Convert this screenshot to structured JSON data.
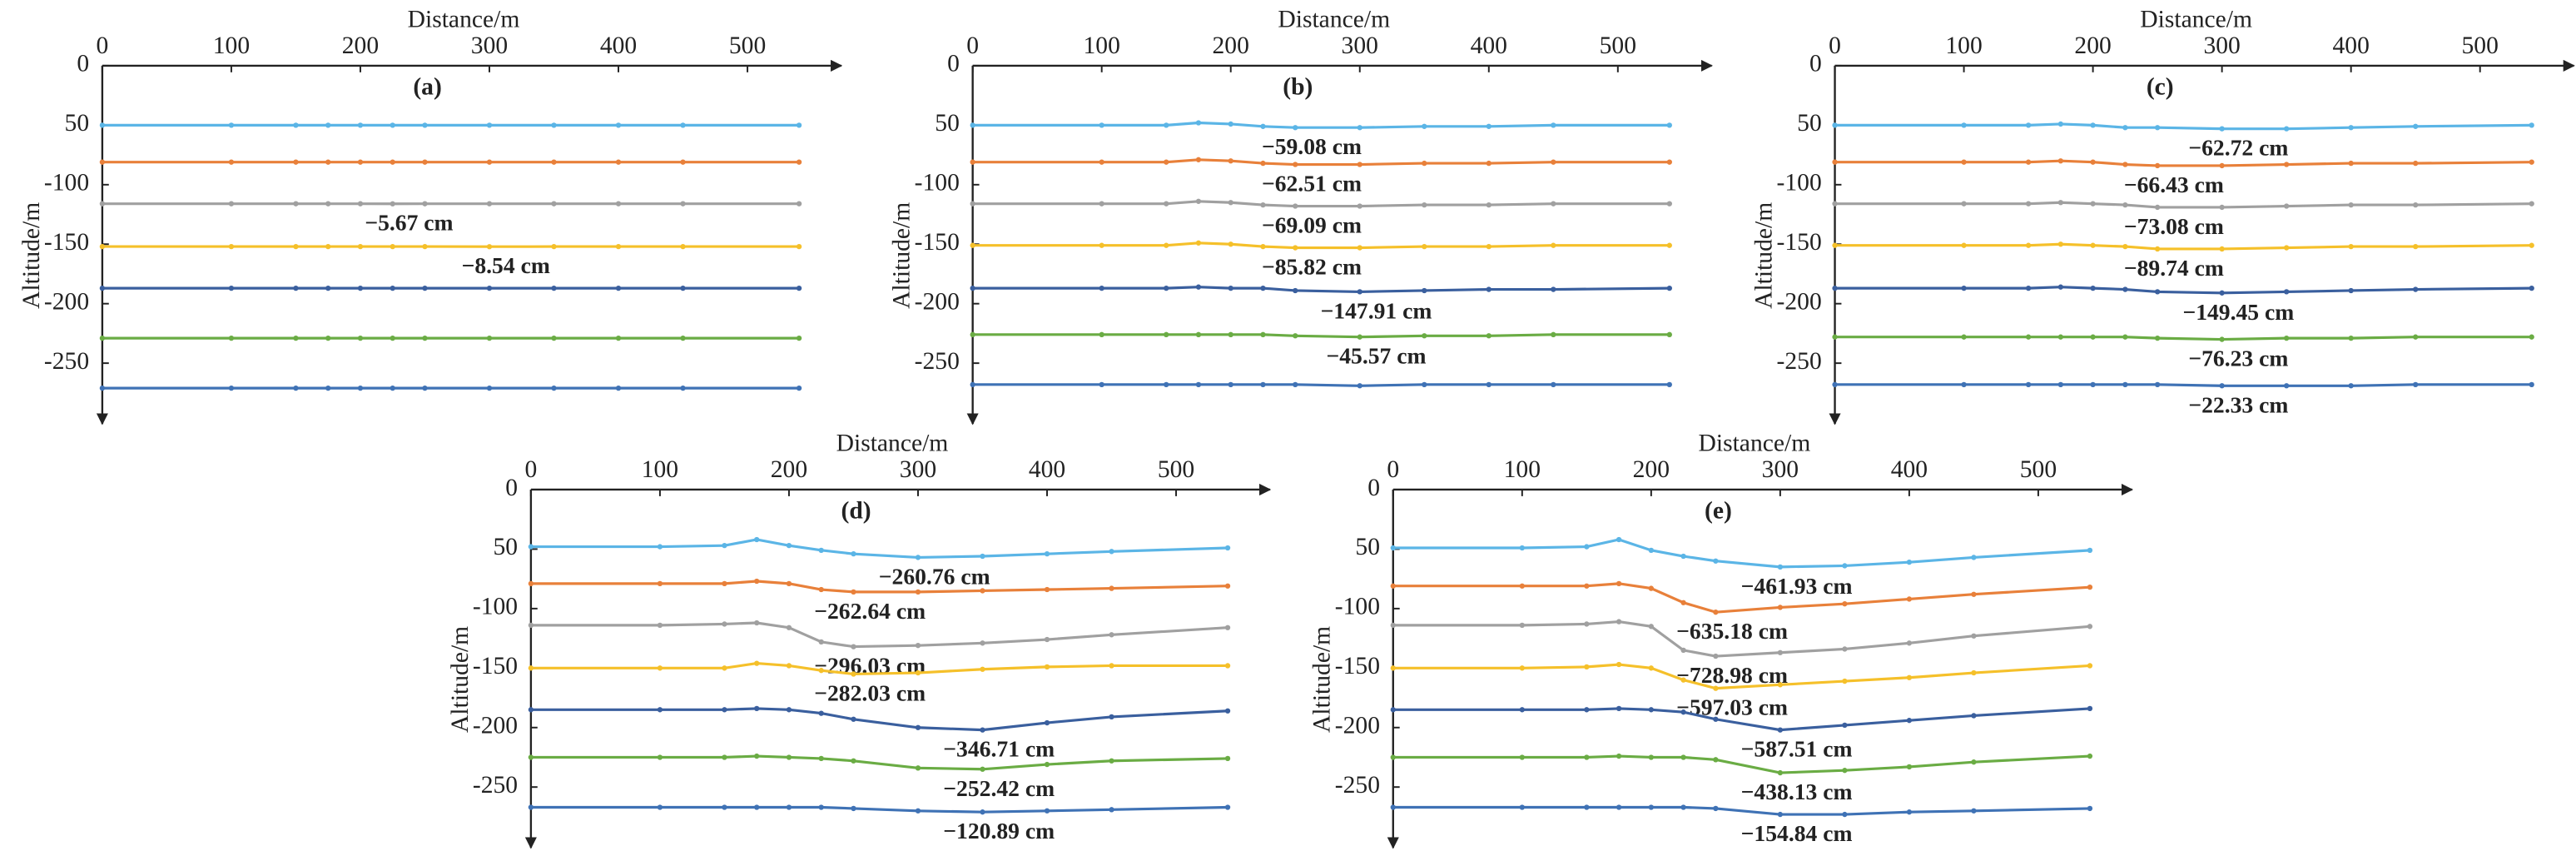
{
  "chart_data": [
    {
      "type": "line",
      "title": "(a)",
      "x_label": "Distance/m",
      "y_label": "Altitude/m",
      "x": [
        0,
        100,
        150,
        175,
        200,
        225,
        250,
        300,
        350,
        400,
        450,
        540
      ],
      "xlim": [
        0,
        560
      ],
      "ylim": [
        -290,
        0
      ],
      "xticks": [
        0,
        100,
        200,
        300,
        400,
        500
      ],
      "yticks": [
        0,
        {
          "value": -50,
          "label": "50"
        },
        -100,
        -150,
        -200,
        -250
      ],
      "series": [
        {
          "color": "#5bb5e6",
          "values": [
            -50,
            -50,
            -50,
            -50,
            -50,
            -50,
            -50,
            -50,
            -50,
            -50,
            -50,
            -50
          ]
        },
        {
          "color": "#e8803a",
          "values": [
            -81,
            -81,
            -81,
            -81,
            -81,
            -81,
            -81,
            -81,
            -81,
            -81,
            -81,
            -81
          ]
        },
        {
          "color": "#a0a0a0",
          "values": [
            -116,
            -116,
            -116,
            -116,
            -116,
            -116.06,
            -116,
            -116,
            -116,
            -116,
            -116,
            -116
          ],
          "label": "−5.67 cm"
        },
        {
          "color": "#f5c02a",
          "values": [
            -152,
            -152,
            -152,
            -152,
            -152,
            -152,
            -152,
            -152.09,
            -152,
            -152,
            -152,
            -152
          ],
          "label": "−8.54 cm"
        },
        {
          "color": "#3a5f9e",
          "values": [
            -187,
            -187,
            -187,
            -187,
            -187,
            -187,
            -187,
            -187,
            -187,
            -187,
            -187,
            -187
          ]
        },
        {
          "color": "#6aac44",
          "values": [
            -229,
            -229,
            -229,
            -229,
            -229,
            -229,
            -229,
            -229,
            -229,
            -229,
            -229,
            -229
          ]
        },
        {
          "color": "#3f72b5",
          "values": [
            -271,
            -271,
            -271,
            -271,
            -271,
            -271,
            -271,
            -271,
            -271,
            -271,
            -271,
            -271
          ]
        }
      ]
    },
    {
      "type": "line",
      "title": "(b)",
      "x_label": "Distance/m",
      "y_label": "Altitude/m",
      "x": [
        0,
        100,
        150,
        175,
        200,
        225,
        250,
        300,
        350,
        400,
        450,
        540
      ],
      "xlim": [
        0,
        560
      ],
      "ylim": [
        -290,
        0
      ],
      "xticks": [
        0,
        100,
        200,
        300,
        400,
        500
      ],
      "yticks": [
        0,
        {
          "value": -50,
          "label": "50"
        },
        -100,
        -150,
        -200,
        -250
      ],
      "series": [
        {
          "color": "#5bb5e6",
          "values": [
            -50,
            -50,
            -50,
            -48,
            -49,
            -51,
            -52,
            -52,
            -51,
            -51,
            -50,
            -50
          ],
          "label": "−59.08 cm"
        },
        {
          "color": "#e8803a",
          "values": [
            -81,
            -81,
            -81,
            -79,
            -80,
            -82,
            -83,
            -83,
            -82,
            -82,
            -81,
            -81
          ],
          "label": "−62.51 cm"
        },
        {
          "color": "#a0a0a0",
          "values": [
            -116,
            -116,
            -116,
            -114,
            -115,
            -117,
            -118,
            -118,
            -117,
            -117,
            -116,
            -116
          ],
          "label": "−69.09 cm"
        },
        {
          "color": "#f5c02a",
          "values": [
            -151,
            -151,
            -151,
            -149,
            -150,
            -152,
            -153,
            -153,
            -152,
            -152,
            -151,
            -151
          ],
          "label": "−85.82 cm"
        },
        {
          "color": "#3a5f9e",
          "values": [
            -187,
            -187,
            -187,
            -186,
            -187,
            -187,
            -189,
            -190,
            -189,
            -188,
            -188,
            -187
          ],
          "label": "−147.91 cm"
        },
        {
          "color": "#6aac44",
          "values": [
            -226,
            -226,
            -226,
            -226,
            -226,
            -226,
            -227,
            -228,
            -227,
            -227,
            -226,
            -226
          ],
          "label": "−45.57 cm"
        },
        {
          "color": "#3f72b5",
          "values": [
            -268,
            -268,
            -268,
            -268,
            -268,
            -268,
            -268,
            -269,
            -268,
            -268,
            -268,
            -268
          ]
        }
      ]
    },
    {
      "type": "line",
      "title": "(c)",
      "x_label": "Distance/m",
      "y_label": "Altitude/m",
      "x": [
        0,
        100,
        150,
        175,
        200,
        225,
        250,
        300,
        350,
        400,
        450,
        540
      ],
      "xlim": [
        0,
        560
      ],
      "ylim": [
        -290,
        0
      ],
      "xticks": [
        0,
        100,
        200,
        300,
        400,
        500
      ],
      "yticks": [
        0,
        {
          "value": -50,
          "label": "50"
        },
        -100,
        -150,
        -200,
        -250
      ],
      "series": [
        {
          "color": "#5bb5e6",
          "values": [
            -50,
            -50,
            -50,
            -49,
            -50,
            -52,
            -52,
            -53,
            -53,
            -52,
            -51,
            -50
          ],
          "label": "−62.72 cm"
        },
        {
          "color": "#e8803a",
          "values": [
            -81,
            -81,
            -81,
            -80,
            -81,
            -83,
            -84,
            -84,
            -83,
            -82,
            -82,
            -81
          ],
          "label": "−66.43 cm"
        },
        {
          "color": "#a0a0a0",
          "values": [
            -116,
            -116,
            -116,
            -115,
            -116,
            -117,
            -119,
            -119,
            -118,
            -117,
            -117,
            -116
          ],
          "label": "−73.08 cm"
        },
        {
          "color": "#f5c02a",
          "values": [
            -151,
            -151,
            -151,
            -150,
            -151,
            -152,
            -154,
            -154,
            -153,
            -152,
            -152,
            -151
          ],
          "label": "−89.74 cm"
        },
        {
          "color": "#3a5f9e",
          "values": [
            -187,
            -187,
            -187,
            -186,
            -187,
            -188,
            -190,
            -191,
            -190,
            -189,
            -188,
            -187
          ],
          "label": "−149.45 cm"
        },
        {
          "color": "#6aac44",
          "values": [
            -228,
            -228,
            -228,
            -228,
            -228,
            -228,
            -229,
            -230,
            -229,
            -229,
            -228,
            -228
          ],
          "label": "−76.23 cm"
        },
        {
          "color": "#3f72b5",
          "values": [
            -268,
            -268,
            -268,
            -268,
            -268,
            -268,
            -268,
            -269,
            -269,
            -269,
            -268,
            -268
          ],
          "label": "−22.33 cm"
        }
      ]
    },
    {
      "type": "line",
      "title": "(d)",
      "x_label": "Distance/m",
      "y_label": "Altitude/m",
      "x": [
        0,
        100,
        150,
        175,
        200,
        225,
        250,
        300,
        350,
        400,
        450,
        540
      ],
      "xlim": [
        0,
        560
      ],
      "ylim": [
        -290,
        0
      ],
      "xticks": [
        0,
        100,
        200,
        300,
        400,
        500
      ],
      "yticks": [
        0,
        {
          "value": -50,
          "label": "50"
        },
        -100,
        -150,
        -200,
        -250
      ],
      "series": [
        {
          "color": "#5bb5e6",
          "values": [
            -48,
            -48,
            -47,
            -42,
            -47,
            -51,
            -54,
            -57,
            -56,
            -54,
            -52,
            -49
          ],
          "label": "−260.76 cm"
        },
        {
          "color": "#e8803a",
          "values": [
            -79,
            -79,
            -79,
            -77,
            -79,
            -84,
            -86,
            -86,
            -85,
            -84,
            -83,
            -81
          ],
          "label": "−262.64 cm"
        },
        {
          "color": "#a0a0a0",
          "values": [
            -114,
            -114,
            -113,
            -112,
            -116,
            -128,
            -132,
            -131,
            -129,
            -126,
            -122,
            -116
          ],
          "label": "−296.03 cm"
        },
        {
          "color": "#f5c02a",
          "values": [
            -150,
            -150,
            -150,
            -146,
            -148,
            -152,
            -155,
            -154,
            -151,
            -149,
            -148,
            -148
          ],
          "label": "−282.03 cm"
        },
        {
          "color": "#3a5f9e",
          "values": [
            -185,
            -185,
            -185,
            -184,
            -185,
            -188,
            -193,
            -200,
            -202,
            -196,
            -191,
            -186
          ],
          "label": "−346.71 cm"
        },
        {
          "color": "#6aac44",
          "values": [
            -225,
            -225,
            -225,
            -224,
            -225,
            -226,
            -228,
            -234,
            -235,
            -231,
            -228,
            -226
          ],
          "label": "−252.42 cm"
        },
        {
          "color": "#3f72b5",
          "values": [
            -267,
            -267,
            -267,
            -267,
            -267,
            -267,
            -268,
            -270,
            -271,
            -270,
            -269,
            -267
          ],
          "label": "−120.89 cm"
        }
      ]
    },
    {
      "type": "line",
      "title": "(e)",
      "x_label": "Distance/m",
      "y_label": "Altitude/m",
      "x": [
        0,
        100,
        150,
        175,
        200,
        225,
        250,
        300,
        350,
        400,
        450,
        540
      ],
      "xlim": [
        0,
        560
      ],
      "ylim": [
        -290,
        0
      ],
      "xticks": [
        0,
        100,
        200,
        300,
        400,
        500
      ],
      "yticks": [
        0,
        {
          "value": -50,
          "label": "50"
        },
        -100,
        -150,
        -200,
        -250
      ],
      "series": [
        {
          "color": "#5bb5e6",
          "values": [
            -49,
            -49,
            -48,
            -42,
            -51,
            -56,
            -60,
            -65,
            -64,
            -61,
            -57,
            -51
          ],
          "label": "−461.93 cm"
        },
        {
          "color": "#e8803a",
          "values": [
            -81,
            -81,
            -81,
            -79,
            -83,
            -95,
            -103,
            -99,
            -96,
            -92,
            -88,
            -82
          ],
          "label": "−635.18 cm"
        },
        {
          "color": "#a0a0a0",
          "values": [
            -114,
            -114,
            -113,
            -111,
            -115,
            -135,
            -140,
            -137,
            -134,
            -129,
            -123,
            -115
          ],
          "label": "−728.98 cm"
        },
        {
          "color": "#f5c02a",
          "values": [
            -150,
            -150,
            -149,
            -147,
            -150,
            -160,
            -167,
            -164,
            -161,
            -158,
            -154,
            -148
          ],
          "label": "−597.03 cm"
        },
        {
          "color": "#3a5f9e",
          "values": [
            -185,
            -185,
            -185,
            -184,
            -185,
            -187,
            -193,
            -202,
            -198,
            -194,
            -190,
            -184
          ],
          "label": "−587.51 cm"
        },
        {
          "color": "#6aac44",
          "values": [
            -225,
            -225,
            -225,
            -224,
            -225,
            -225,
            -227,
            -238,
            -236,
            -233,
            -229,
            -224
          ],
          "label": "−438.13 cm"
        },
        {
          "color": "#3f72b5",
          "values": [
            -267,
            -267,
            -267,
            -267,
            -267,
            -267,
            -268,
            -273,
            -273,
            -271,
            -270,
            -268
          ],
          "label": "−154.84 cm"
        }
      ]
    }
  ]
}
